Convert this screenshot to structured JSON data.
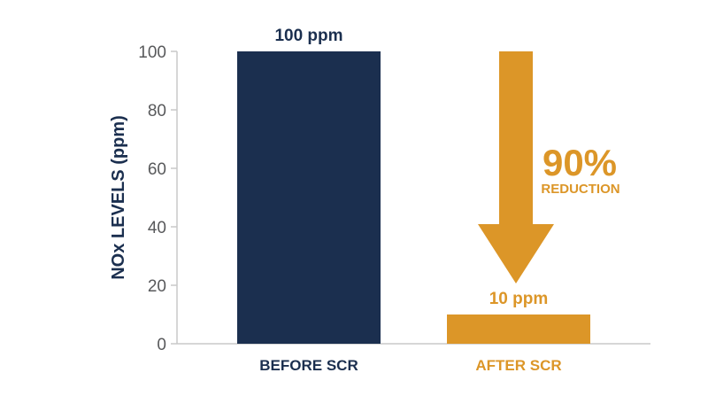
{
  "chart_data": {
    "type": "bar",
    "categories": [
      "BEFORE SCR",
      "AFTER SCR"
    ],
    "values": [
      100,
      10
    ],
    "data_labels": [
      "100 ppm",
      "10 ppm"
    ],
    "ylabel": "NOx LEVELS (ppm)",
    "ylim": [
      0,
      100
    ],
    "yticks": [
      "0",
      "20",
      "40",
      "60",
      "80",
      "100"
    ],
    "bar_colors": [
      "#1b2f4f",
      "#dc9628"
    ],
    "grid": false
  },
  "annotation": {
    "percent": "90%",
    "text": "REDUCTION",
    "color": "#dc9628"
  },
  "colors": {
    "navy": "#1b2f4f",
    "gold": "#dc9628",
    "axis": "#c8c8c8",
    "tick_text": "#58595b"
  }
}
